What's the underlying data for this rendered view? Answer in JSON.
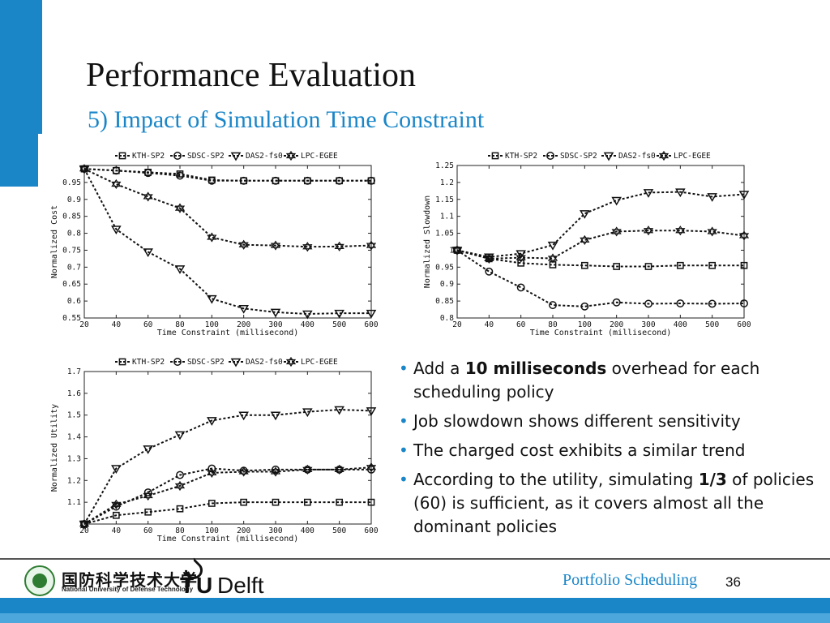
{
  "slide": {
    "title": "Performance Evaluation",
    "subtitle": "5) Impact of Simulation Time Constraint",
    "bullets": [
      {
        "parts": [
          {
            "t": "Add a ",
            "b": false
          },
          {
            "t": "10 milliseconds",
            "b": true
          },
          {
            "t": " overhead for each scheduling policy",
            "b": false
          }
        ]
      },
      {
        "parts": [
          {
            "t": "Job slowdown shows different sensitivity",
            "b": false
          }
        ]
      },
      {
        "parts": [
          {
            "t": "The charged cost exhibits a similar trend",
            "b": false
          }
        ]
      },
      {
        "parts": [
          {
            "t": "According to the utility, simulating ",
            "b": false
          },
          {
            "t": "1/3",
            "b": true
          },
          {
            "t": " of policies (60) is sufficient, as it covers almost all the dominant policies",
            "b": false
          }
        ]
      }
    ]
  },
  "footer": {
    "nudt_cn": "国防科学技术大学",
    "nudt_en": "National University of Defense Technology",
    "tu_t": "T",
    "tu_u": "U",
    "tu_delft": "Delft",
    "label": "Portfolio Scheduling",
    "page": "36"
  },
  "colors": {
    "accent": "#1a86c8",
    "accent_light": "#4da7dc",
    "series": "#111111"
  },
  "chart_data": [
    {
      "type": "line",
      "x": [
        "20",
        "40",
        "60",
        "80",
        "100",
        "200",
        "300",
        "400",
        "500",
        "600"
      ],
      "xlabel": "Time Constraint (millisecond)",
      "ylabel": "Normalized Cost",
      "ylim": [
        0.55,
        1.0
      ],
      "yticks": [
        "0.55",
        "0.6",
        "0.65",
        "0.7",
        "0.75",
        "0.8",
        "0.85",
        "0.9",
        "0.95"
      ],
      "legend_position": "top",
      "series": [
        {
          "name": "KTH-SP2",
          "marker": "square",
          "values": [
            0.99,
            0.985,
            0.98,
            0.975,
            0.957,
            0.955,
            0.955,
            0.955,
            0.955,
            0.955
          ]
        },
        {
          "name": "SDSC-SP2",
          "marker": "circle",
          "values": [
            0.99,
            0.985,
            0.978,
            0.97,
            0.955,
            0.955,
            0.955,
            0.955,
            0.955,
            0.955
          ]
        },
        {
          "name": "DAS2-fs0",
          "marker": "triangle-down",
          "values": [
            0.99,
            0.812,
            0.745,
            0.695,
            0.607,
            0.578,
            0.567,
            0.562,
            0.564,
            0.564
          ]
        },
        {
          "name": "LPC-EGEE",
          "marker": "hexagram",
          "values": [
            0.99,
            0.945,
            0.908,
            0.874,
            0.788,
            0.766,
            0.764,
            0.76,
            0.761,
            0.764
          ]
        }
      ]
    },
    {
      "type": "line",
      "x": [
        "20",
        "40",
        "60",
        "80",
        "100",
        "200",
        "300",
        "400",
        "500",
        "600"
      ],
      "xlabel": "Time Constraint (millisecond)",
      "ylabel": "Normalized Slowdown",
      "ylim": [
        0.8,
        1.25
      ],
      "yticks": [
        "0.8",
        "0.85",
        "0.9",
        "0.95",
        "1",
        "1.05",
        "1.1",
        "1.15",
        "1.2",
        "1.25"
      ],
      "legend_position": "top",
      "series": [
        {
          "name": "KTH-SP2",
          "marker": "square",
          "values": [
            1.0,
            0.975,
            0.962,
            0.957,
            0.955,
            0.952,
            0.952,
            0.955,
            0.955,
            0.955
          ]
        },
        {
          "name": "SDSC-SP2",
          "marker": "circle",
          "values": [
            1.0,
            0.937,
            0.89,
            0.838,
            0.834,
            0.846,
            0.842,
            0.843,
            0.842,
            0.843
          ]
        },
        {
          "name": "DAS2-fs0",
          "marker": "triangle-down",
          "values": [
            1.0,
            0.98,
            0.99,
            1.015,
            1.108,
            1.147,
            1.17,
            1.172,
            1.158,
            1.165
          ]
        },
        {
          "name": "LPC-EGEE",
          "marker": "hexagram",
          "values": [
            1.0,
            0.975,
            0.978,
            0.976,
            1.03,
            1.055,
            1.058,
            1.058,
            1.055,
            1.043
          ]
        }
      ]
    },
    {
      "type": "line",
      "x": [
        "20",
        "40",
        "60",
        "80",
        "100",
        "200",
        "300",
        "400",
        "500",
        "600"
      ],
      "xlabel": "Time Constraint (millisecond)",
      "ylabel": "Normalized Utility",
      "ylim": [
        1.0,
        1.7
      ],
      "yticks": [
        "1.1",
        "1.2",
        "1.3",
        "1.4",
        "1.5",
        "1.6",
        "1.7"
      ],
      "legend_position": "top",
      "series": [
        {
          "name": "KTH-SP2",
          "marker": "square",
          "values": [
            1.0,
            1.04,
            1.055,
            1.07,
            1.095,
            1.1,
            1.1,
            1.1,
            1.1,
            1.1
          ]
        },
        {
          "name": "SDSC-SP2",
          "marker": "circle",
          "values": [
            1.0,
            1.08,
            1.145,
            1.225,
            1.255,
            1.245,
            1.25,
            1.25,
            1.25,
            1.25
          ]
        },
        {
          "name": "DAS2-fs0",
          "marker": "triangle-down",
          "values": [
            1.0,
            1.255,
            1.345,
            1.41,
            1.475,
            1.5,
            1.5,
            1.515,
            1.525,
            1.52
          ]
        },
        {
          "name": "LPC-EGEE",
          "marker": "hexagram",
          "values": [
            1.0,
            1.09,
            1.13,
            1.175,
            1.235,
            1.24,
            1.24,
            1.25,
            1.25,
            1.26
          ]
        }
      ]
    }
  ]
}
